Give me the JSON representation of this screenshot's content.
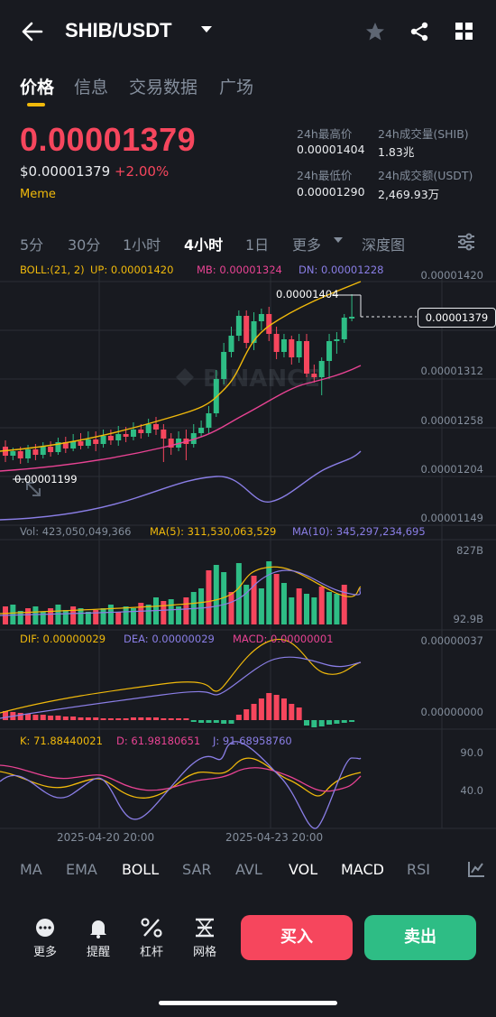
{
  "header": {
    "pair": "SHIB/USDT"
  },
  "tabs": [
    {
      "label": "价格"
    },
    {
      "label": "信息"
    },
    {
      "label": "交易数据"
    },
    {
      "label": "广场"
    }
  ],
  "price": {
    "last": "0.00001379",
    "usd": "$0.00001379",
    "change": "+2.00%",
    "tag": "Meme"
  },
  "stats": {
    "high_label": "24h最高价",
    "high": "0.00001404",
    "low_label": "24h最低价",
    "low": "0.00001290",
    "vol_label": "24h成交量(SHIB)",
    "vol": "1.83兆",
    "amt_label": "24h成交额(USDT)",
    "amt": "2,469.93万"
  },
  "intervals": {
    "i5": "5分",
    "i30": "30分",
    "i1h": "1小时",
    "i4h": "4小时",
    "i1d": "1日",
    "more": "更多",
    "depth": "深度图"
  },
  "indicators": {
    "boll": "BOLL:(21, 2)",
    "up": "UP: 0.00001420",
    "mb": "MB: 0.00001324",
    "dn": "DN: 0.00001228",
    "vol": "Vol: 423,050,049,366",
    "ma5": "MA(5): 311,530,063,529",
    "ma10": "MA(10): 345,297,234,695",
    "dif": "DIF: 0.00000029",
    "dea": "DEA: 0.00000029",
    "macd": "MACD: 0.00000001",
    "k": "K: 71.88440021",
    "d": "D: 61.98180651",
    "j": "J: 91.68958760"
  },
  "axis": {
    "p1": "0.00001420",
    "p2": "0.00001312",
    "p3": "0.00001258",
    "p4": "0.00001204",
    "p5": "0.00001149",
    "current": "0.00001379",
    "maxmark": "0.00001404",
    "minmark": "0.00001199",
    "v1": "827B",
    "v2": "92.9B",
    "m1": "0.00000037",
    "m2": "0.00000000",
    "k1": "90.0",
    "k2": "40.0",
    "date1": "2025-04-20 20:00",
    "date2": "2025-04-23 20:00"
  },
  "bottom_tabs": {
    "ma": "MA",
    "ema": "EMA",
    "boll": "BOLL",
    "sar": "SAR",
    "avl": "AVL",
    "vol": "VOL",
    "macd": "MACD",
    "rsi": "RSI"
  },
  "nav": {
    "more": "更多",
    "alert": "提醒",
    "lever": "杠杆",
    "grid": "网格",
    "buy": "买入",
    "sell": "卖出"
  },
  "colors": {
    "up": "#2ebd85",
    "down": "#f6465d",
    "accent": "#f0b90b",
    "bg": "#181a20"
  }
}
